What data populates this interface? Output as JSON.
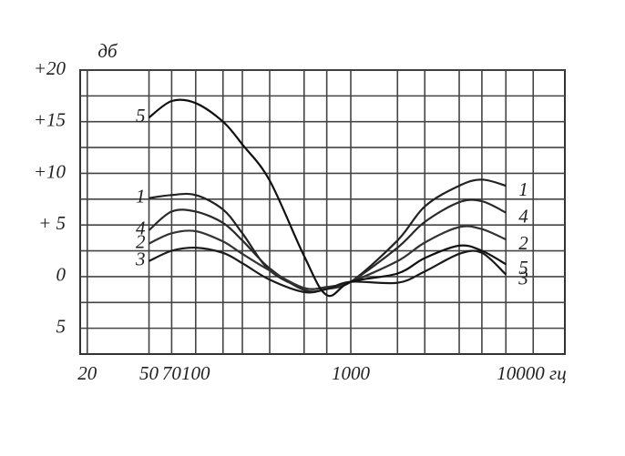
{
  "chart_data": {
    "type": "line",
    "y_label": "дб",
    "x": [
      50,
      70,
      100,
      150,
      200,
      300,
      500,
      700,
      1000,
      2000,
      3000,
      5000,
      7000,
      10000
    ],
    "series": [
      {
        "name": "1",
        "color": "#222222",
        "values": [
          7.6,
          7.9,
          7.9,
          6.5,
          4.2,
          0.6,
          -1.1,
          -1.0,
          -0.5,
          3.5,
          6.8,
          8.8,
          9.4,
          8.8
        ]
      },
      {
        "name": "4",
        "color": "#2a2a2a",
        "values": [
          4.5,
          6.3,
          6.3,
          5.2,
          3.5,
          0.8,
          -1.3,
          -1.2,
          -0.5,
          2.8,
          5.3,
          7.2,
          7.3,
          6.2
        ]
      },
      {
        "name": "2",
        "color": "#333333",
        "values": [
          3.2,
          4.2,
          4.4,
          3.4,
          2.2,
          0.6,
          -1.1,
          -1.0,
          -0.5,
          1.5,
          3.3,
          4.8,
          4.6,
          3.6
        ]
      },
      {
        "name": "3",
        "color": "#1a1a1a",
        "values": [
          1.5,
          2.5,
          2.8,
          2.3,
          1.3,
          -0.3,
          -1.5,
          -1.2,
          -0.5,
          -0.6,
          0.5,
          2.2,
          2.3,
          0.2
        ]
      },
      {
        "name": "5",
        "color": "#111111",
        "values": [
          15.4,
          17.0,
          16.8,
          15.0,
          12.8,
          9.3,
          2.0,
          -1.8,
          -0.5,
          0.3,
          1.8,
          3.0,
          2.5,
          1.2
        ]
      }
    ],
    "log_x": true,
    "xlim": [
      18,
      24000
    ],
    "xticks": [
      20,
      50,
      70,
      100,
      1000,
      {
        "value": 10000,
        "label": "10000 гц"
      }
    ],
    "xminorticks": [
      150,
      200,
      300,
      500,
      700,
      2000,
      3000,
      5000,
      7000,
      15000
    ],
    "ylim": [
      -7.5,
      20
    ],
    "yticks": [
      {
        "value": 20,
        "label": "+20"
      },
      {
        "value": 15,
        "label": "+15"
      },
      {
        "value": 10,
        "label": "+10"
      },
      {
        "value": 5,
        "label": "+ 5"
      },
      0,
      {
        "value": -5,
        "label": "5"
      }
    ],
    "yminorticks": [
      17.5,
      12.5,
      7.5,
      2.5,
      -2.5
    ],
    "grid": true
  }
}
